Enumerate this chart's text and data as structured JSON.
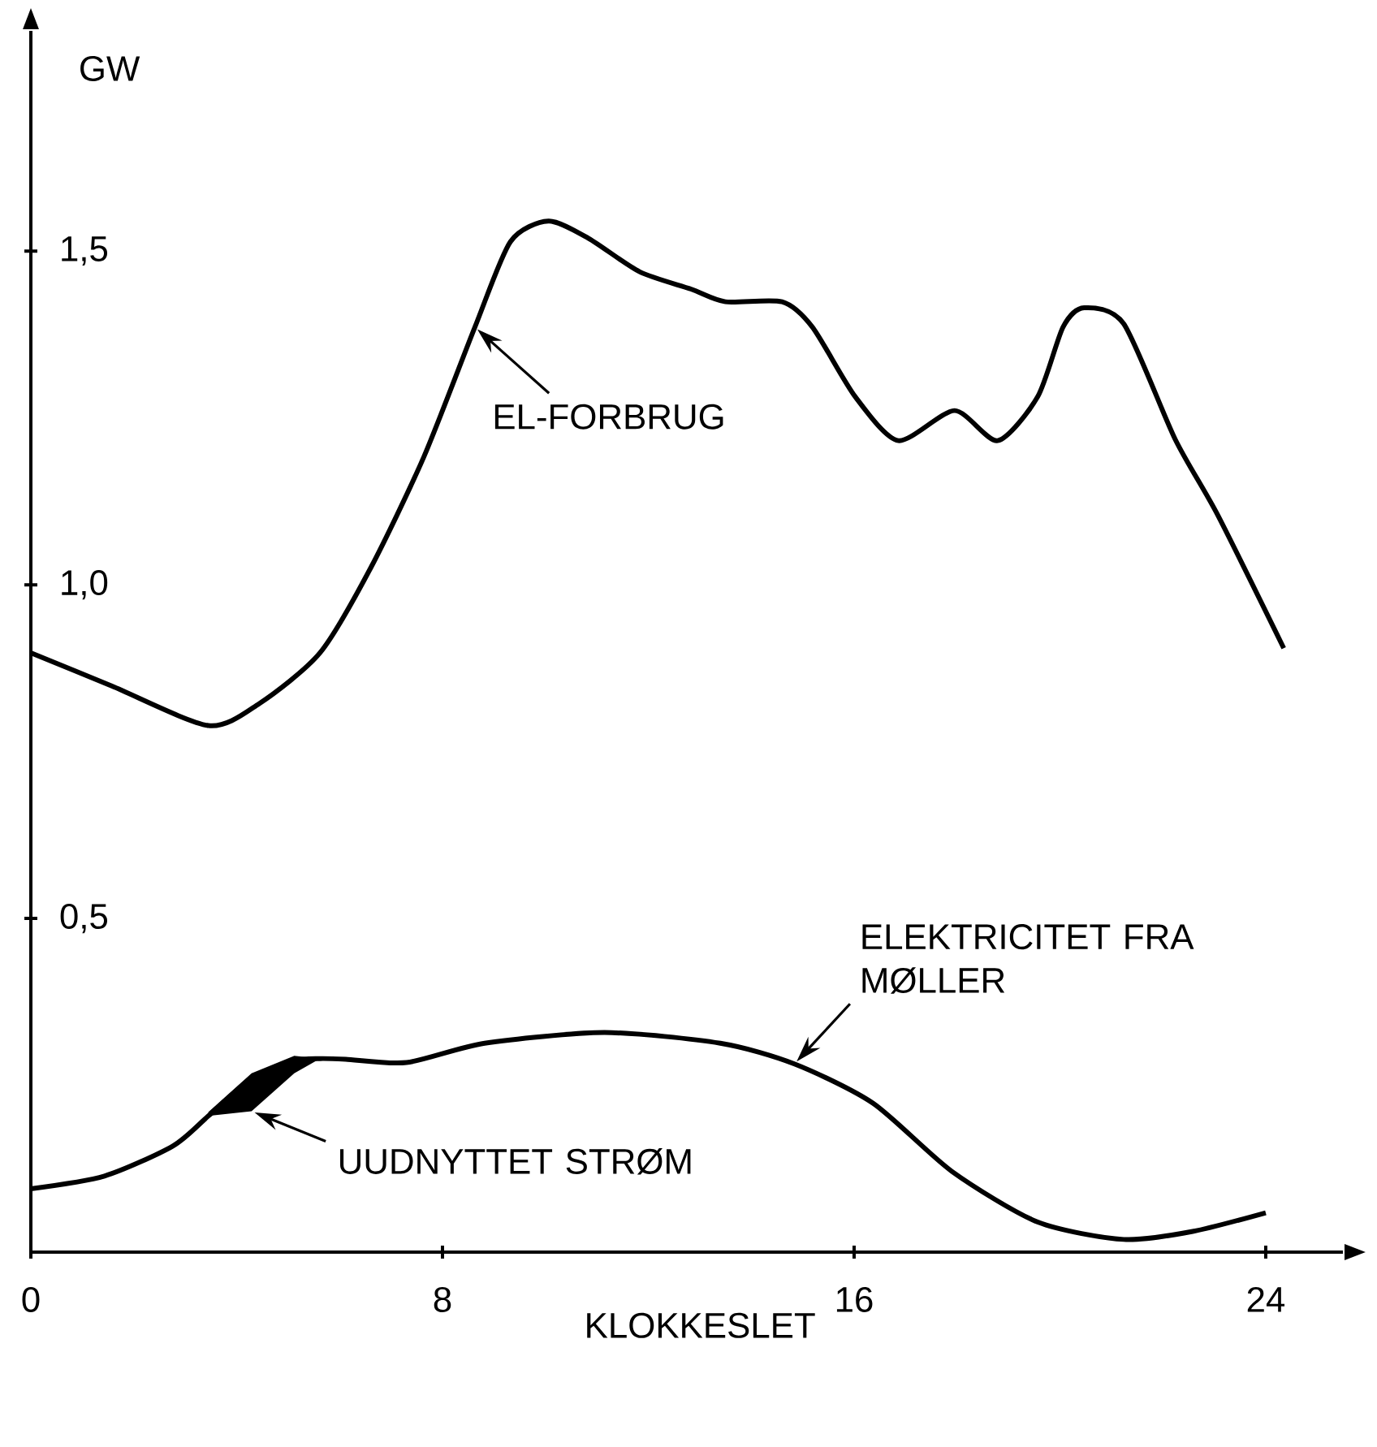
{
  "chart_data": {
    "type": "line",
    "xlabel": "KLOKKESLET",
    "ylabel": "GW",
    "xlim": [
      0,
      25.5
    ],
    "ylim": [
      0,
      1.83
    ],
    "xticks": [
      0,
      8,
      16,
      24
    ],
    "yticks": [
      {
        "value": 0.5,
        "label": "0,5"
      },
      {
        "value": 1.0,
        "label": "1,0"
      },
      {
        "value": 1.5,
        "label": "1,5"
      }
    ],
    "series": [
      {
        "color": "#000000",
        "x": [
          0,
          1.58,
          3.45,
          4.44,
          5.62,
          6.61,
          7.64,
          8.63,
          9.32,
          10.06,
          10.84,
          11.83,
          12.83,
          13.5,
          14.6,
          15.19,
          16.02,
          16.86,
          17.95,
          18.79,
          19.57,
          20.06,
          20.47,
          21.24,
          22.24,
          23.07,
          24.35
        ],
        "values": [
          0.898,
          0.848,
          0.789,
          0.822,
          0.898,
          1.026,
          1.192,
          1.386,
          1.514,
          1.545,
          1.519,
          1.469,
          1.443,
          1.424,
          1.424,
          1.386,
          1.282,
          1.216,
          1.261,
          1.216,
          1.282,
          1.386,
          1.415,
          1.391,
          1.218,
          1.104,
          0.905
        ]
      },
      {
        "color": "#000000",
        "x": [
          0,
          1.43,
          2.76,
          3.45,
          4.29,
          5.12,
          5.62,
          6.12,
          7.3,
          8.82,
          11.15,
          13.4,
          14.84,
          16.37,
          17.9,
          19.57,
          21.24,
          22.58,
          24
        ],
        "values": [
          0.095,
          0.114,
          0.159,
          0.204,
          0.26,
          0.287,
          0.29,
          0.289,
          0.284,
          0.313,
          0.329,
          0.313,
          0.282,
          0.223,
          0.121,
          0.045,
          0.019,
          0.031,
          0.059
        ],
        "lower": [
          null,
          null,
          null,
          0.204,
          0.211,
          0.268,
          0.29,
          null,
          null,
          null,
          null,
          null,
          null,
          null,
          null,
          null,
          null,
          null,
          null
        ],
        "upper": [
          null,
          null,
          null,
          0.21,
          0.268,
          0.294,
          0.29,
          null,
          null,
          null,
          null,
          null,
          null,
          null,
          null,
          null,
          null,
          null,
          null
        ]
      }
    ],
    "annotations": [
      {
        "text": "EL-FORBRUG",
        "x": 8.63,
        "y": 1.386
      },
      {
        "text": "ELEKTRICITET FRA MØLLER",
        "x": 14.84,
        "y": 0.282
      },
      {
        "text": "UUDNYTTET STRØM",
        "x": 4.29,
        "y": 0.211
      }
    ]
  }
}
